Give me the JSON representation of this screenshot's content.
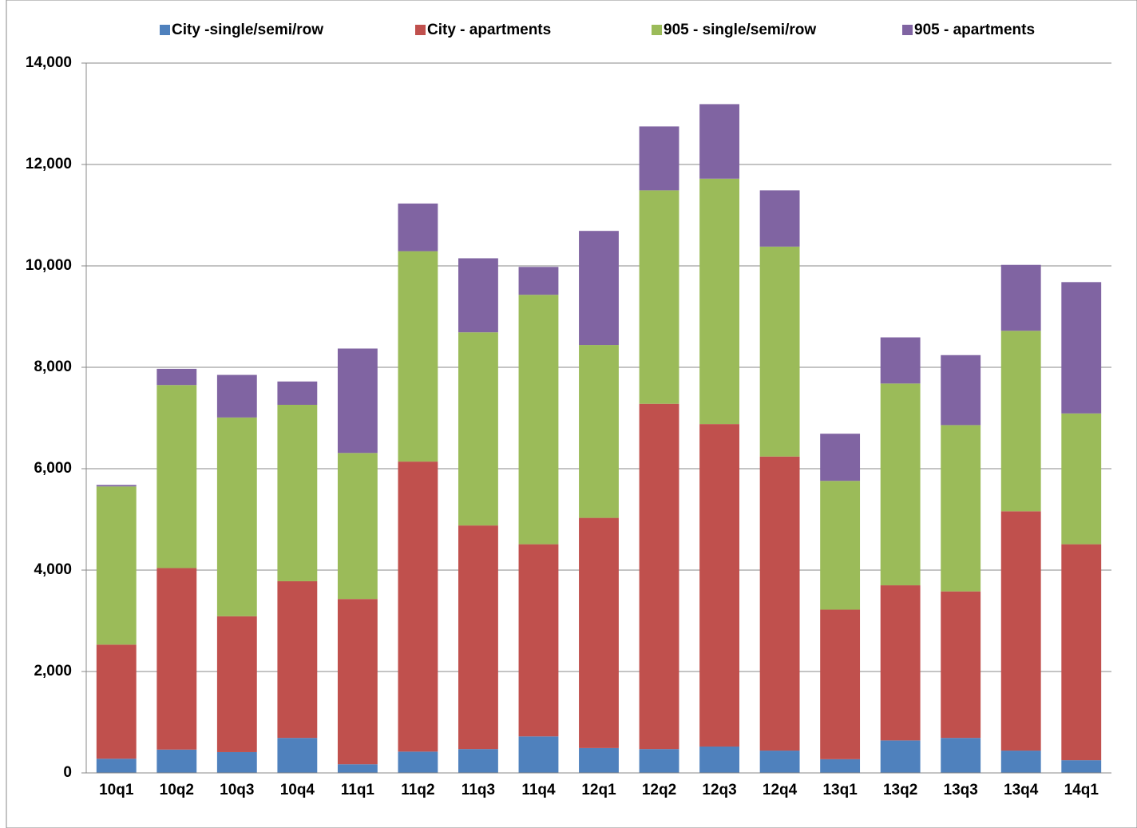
{
  "chart_data": {
    "type": "stacked_bar",
    "categories": [
      "10q1",
      "10q2",
      "10q3",
      "10q4",
      "11q1",
      "11q2",
      "11q3",
      "11q4",
      "12q1",
      "12q2",
      "12q3",
      "12q4",
      "13q1",
      "13q2",
      "13q3",
      "13q4",
      "14q1"
    ],
    "series": [
      {
        "name": "City -single/semi/row",
        "color": "#4f81bd",
        "values": [
          280,
          460,
          410,
          690,
          170,
          420,
          470,
          720,
          490,
          470,
          520,
          440,
          270,
          640,
          690,
          440,
          250
        ]
      },
      {
        "name": "City - apartments",
        "color": "#c0504d",
        "values": [
          2250,
          3580,
          2680,
          3090,
          3260,
          5720,
          4410,
          3790,
          4540,
          6810,
          6360,
          5800,
          2950,
          3060,
          2890,
          4720,
          4260
        ]
      },
      {
        "name": "905 - single/semi/row",
        "color": "#9bbb59",
        "values": [
          3120,
          3610,
          3920,
          3480,
          2880,
          4150,
          3810,
          4920,
          3410,
          4210,
          4840,
          4140,
          2540,
          3980,
          3280,
          3560,
          2580
        ]
      },
      {
        "name": "905 - apartments",
        "color": "#8064a2",
        "values": [
          30,
          320,
          840,
          460,
          2060,
          940,
          1460,
          550,
          2250,
          1260,
          1470,
          1110,
          930,
          910,
          1380,
          1300,
          2590
        ]
      }
    ],
    "ylim": [
      0,
      14000
    ],
    "yticks": [
      0,
      {
        "value": 2000,
        "label": "2,000"
      },
      {
        "value": 4000,
        "label": "4,000"
      },
      {
        "value": 6000,
        "label": "6,000"
      },
      {
        "value": 8000,
        "label": "8,000"
      },
      {
        "value": 10000,
        "label": "10,000"
      },
      {
        "value": 12000,
        "label": "12,000"
      },
      {
        "value": 14000,
        "label": "14,000"
      }
    ],
    "grid": true,
    "legend": "top"
  }
}
